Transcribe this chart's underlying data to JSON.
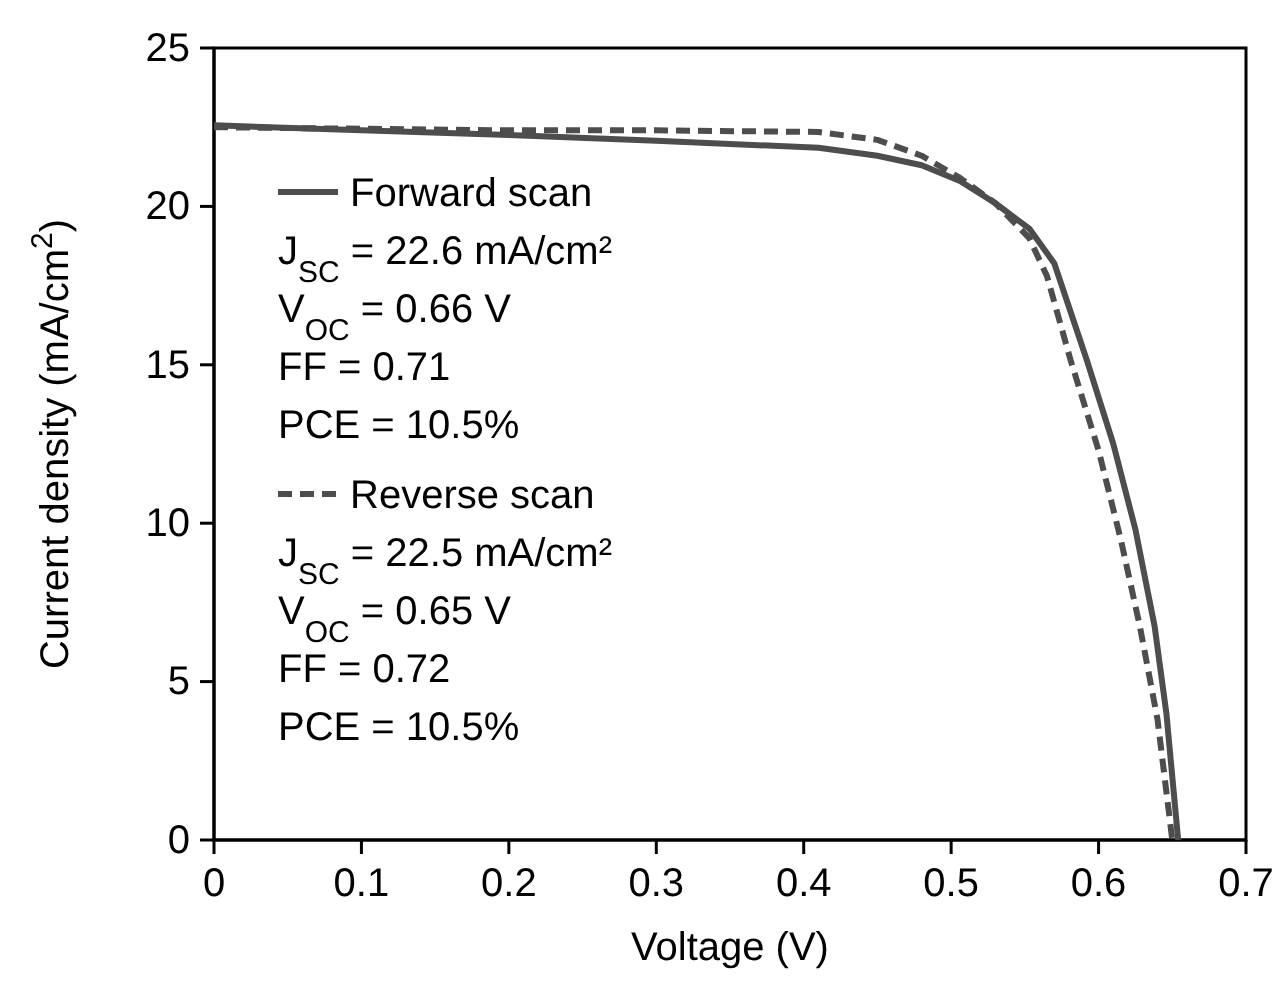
{
  "chart_data": {
    "type": "line",
    "xlabel": "Voltage (V)",
    "ylabel": "Current density (mA/cm$^{2}$)",
    "xlim": [
      0,
      0.7
    ],
    "xticks": [
      0,
      0.1,
      0.2,
      0.3,
      0.4,
      0.5,
      0.6,
      0.7
    ],
    "ylim": [
      0,
      25
    ],
    "yticks": [
      0,
      5,
      10,
      15,
      20,
      25
    ],
    "grid": false,
    "legend": "left",
    "marker": "none",
    "series": [
      {
        "name": "Forward scan",
        "color": "#4d4d4d",
        "line_style": "solid",
        "x": [
          0,
          0.1,
          0.2,
          0.3,
          0.41,
          0.45,
          0.48,
          0.506,
          0.53,
          0.553,
          0.57,
          0.592,
          0.61,
          0.625,
          0.638,
          0.646,
          0.654
        ],
        "values": [
          22.56,
          22.4,
          22.25,
          22.07,
          21.85,
          21.6,
          21.3,
          20.8,
          20.1,
          19.3,
          18.2,
          15.15,
          12.5,
          9.8,
          6.75,
          4,
          0
        ]
      },
      {
        "name": "Reverse scan",
        "color": "#4d4d4d",
        "line_style": "dashed",
        "x": [
          0,
          0.1,
          0.2,
          0.3,
          0.41,
          0.45,
          0.48,
          0.506,
          0.53,
          0.553,
          0.565,
          0.581,
          0.6,
          0.615,
          0.628,
          0.64,
          0.65
        ],
        "values": [
          22.5,
          22.45,
          22.4,
          22.4,
          22.35,
          22.1,
          21.6,
          20.9,
          20.1,
          19.0,
          17.8,
          15.15,
          12.3,
          9.5,
          6.75,
          3.8,
          0
        ]
      }
    ],
    "annotations": [
      "J$_{SC}$ = 22.6 mA/cm²",
      "V$_{OC}$ = 0.66 V",
      "FF = 0.71",
      "PCE = 10.5%",
      "J$_{SC}$ = 22.5 mA/cm²",
      "V$_{OC}$ = 0.65 V",
      "FF = 0.72",
      "PCE = 10.5%"
    ]
  }
}
